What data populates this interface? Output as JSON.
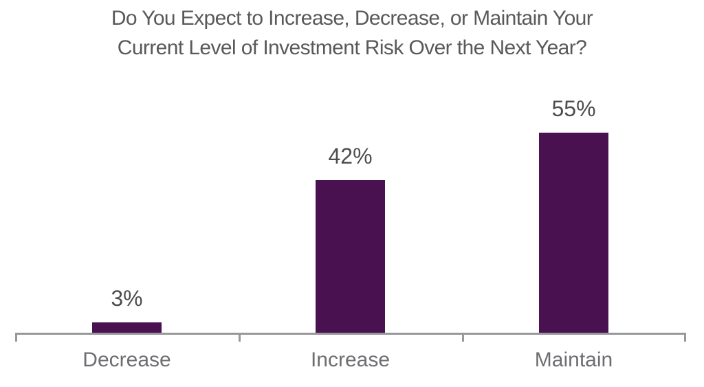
{
  "chart_data": {
    "type": "bar",
    "title": "Do You Expect to Increase, Decrease, or Maintain Your Current Level of Investment Risk Over the Next Year?",
    "title_lines": [
      "Do You Expect to Increase, Decrease, or Maintain Your",
      "Current Level of Investment Risk Over the Next Year?"
    ],
    "categories": [
      "Decrease",
      "Increase",
      "Maintain"
    ],
    "values": [
      3,
      42,
      55
    ],
    "value_labels": [
      "3%",
      "42%",
      "55%"
    ],
    "xlabel": "",
    "ylabel": "",
    "ylim": [
      0,
      60
    ],
    "grid": false,
    "legend": "none",
    "colors": {
      "bar": "#4a1150",
      "axis": "#97989c",
      "title_text": "#58595b",
      "value_label_text": "#4d4d4f",
      "category_label_text": "#6d6e71",
      "background": "#ffffff"
    }
  }
}
